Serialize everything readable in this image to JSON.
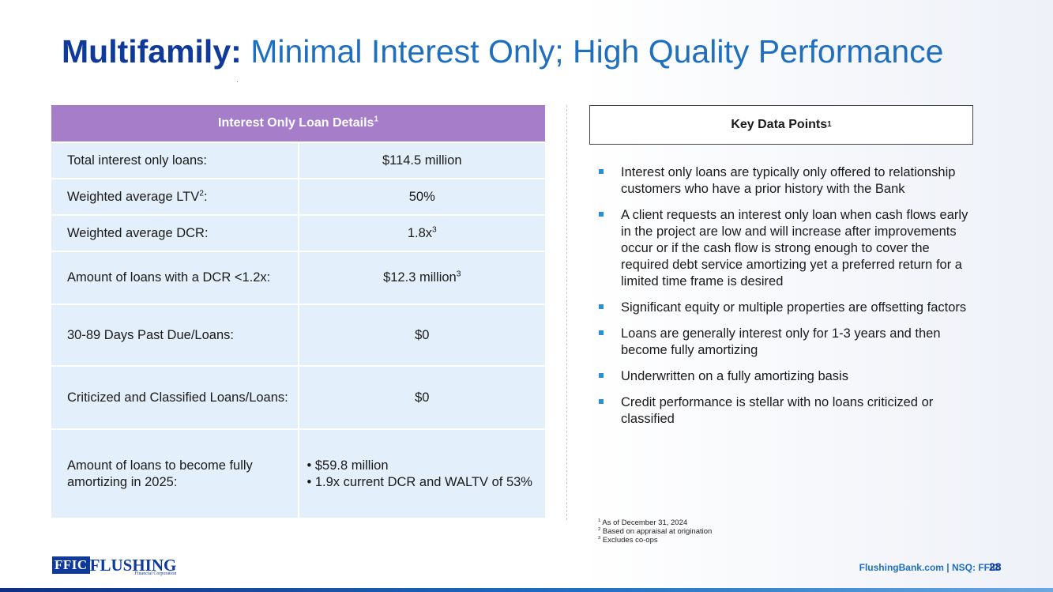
{
  "title": {
    "bold": "Multifamily:",
    "rest": " Minimal Interest Only; High Quality Performance"
  },
  "table": {
    "header": "Interest Only Loan Details",
    "header_sup": "1",
    "rows": [
      {
        "label": "Total interest only loans:",
        "value": "$114.5 million"
      },
      {
        "label": "Weighted average LTV",
        "label_sup": "2",
        "label_tail": ":",
        "value": "50%"
      },
      {
        "label": "Weighted average DCR:",
        "value": "1.8x",
        "value_sup": "3"
      },
      {
        "label": "Amount of loans with a DCR <1.2x:",
        "value": "$12.3 million",
        "value_sup": "3"
      },
      {
        "label": "30-89 Days Past Due/Loans:",
        "value": "$0"
      },
      {
        "label": "Criticized and Classified Loans/Loans:",
        "value": "$0"
      },
      {
        "label": "Amount of loans to become fully amortizing in 2025:",
        "value_items": [
          "• $59.8 million",
          "• 1.9x current DCR and WALTV of 53%"
        ]
      }
    ]
  },
  "key_points": {
    "heading": "Key Data Points",
    "heading_sup": "1",
    "items": [
      "Interest only loans are typically only offered to relationship customers who have a prior history with the Bank",
      "A client requests an interest only loan when cash flows early in the project are low and will increase after improvements occur or if the cash flow is strong enough to cover the required debt service amortizing yet a preferred return for a limited time frame is desired",
      "Significant equity or multiple properties are offsetting factors",
      "Loans are generally interest only for 1-3 years and then become fully amortizing",
      "Underwritten on a fully amortizing basis",
      "Credit performance is stellar with no loans criticized or classified"
    ]
  },
  "footnotes": [
    {
      "num": "1",
      "text": "As of December 31, 2024"
    },
    {
      "num": "2",
      "text": "Based on appraisal at origination"
    },
    {
      "num": "3",
      "text": "Excludes co-ops"
    }
  ],
  "footer": {
    "logo_box": "FFIC",
    "logo_word": "FLUSHING",
    "logo_sub": "Financial Corporation",
    "site": "FlushingBank.com  |  NSQ: FFIC",
    "page": "28"
  },
  "colors": {
    "title_bold": "#0f3a99",
    "title": "#1f6fc1",
    "table_header": "#a57dc9",
    "table_cell": "#e3effa",
    "bullet": "#2a8fd6"
  }
}
